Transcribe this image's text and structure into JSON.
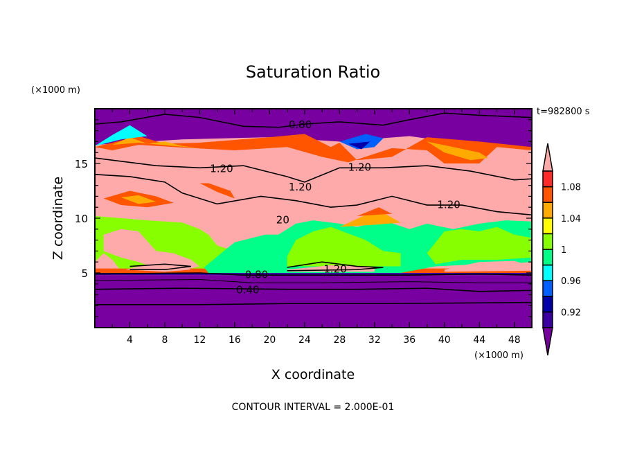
{
  "chart_data": {
    "type": "heatmap",
    "title": "Saturation Ratio",
    "xlabel": "X coordinate",
    "ylabel": "Z coordinate",
    "x_unit": "(×1000 m)",
    "y_unit": "(×1000 m)",
    "time_label": "t=982800 s",
    "footer": "CONTOUR INTERVAL = 2.000E-01",
    "xlim": [
      0,
      50
    ],
    "ylim": [
      0,
      20
    ],
    "x_ticks": [
      "4",
      "8",
      "12",
      "16",
      "20",
      "24",
      "28",
      "32",
      "36",
      "40",
      "44",
      "48"
    ],
    "y_ticks": [
      "5",
      "10",
      "15"
    ],
    "colorbar": {
      "levels": [
        0.9,
        0.92,
        0.94,
        0.96,
        0.98,
        1,
        1.02,
        1.04,
        1.06,
        1.08,
        1.1
      ],
      "labels": [
        "1.08",
        "1.04",
        "1",
        "0.96",
        "0.92"
      ],
      "label_values": [
        1.08,
        1.04,
        1,
        0.96,
        0.92
      ],
      "colors": [
        "#3a00a0",
        "#0000aa",
        "#0060ff",
        "#00ffff",
        "#00ff88",
        "#88ff00",
        "#ffff00",
        "#ffaa00",
        "#ff5500",
        "#ff2a2a"
      ],
      "under_color": "#7800a0",
      "over_color": "#ffaaaa"
    },
    "contour_labels": [
      {
        "text": "0.80",
        "x": 23.5,
        "z": 18.6
      },
      {
        "text": "1.20",
        "x": 14.5,
        "z": 14.6
      },
      {
        "text": "1.20",
        "x": 30.3,
        "z": 14.7
      },
      {
        "text": "1.20",
        "x": 23.5,
        "z": 12.9
      },
      {
        "text": "1.20",
        "x": 40.5,
        "z": 11.3
      },
      {
        "text": "20",
        "x": 21.5,
        "z": 9.9
      },
      {
        "text": "1.20",
        "x": 27.5,
        "z": 5.4
      },
      {
        "text": "0.80",
        "x": 18.5,
        "z": 4.9
      },
      {
        "text": "0.40",
        "x": 17.5,
        "z": 3.5
      }
    ],
    "regions": [
      {
        "c": "#ffaaaa",
        "pts": [
          [
            0,
            4.8
          ],
          [
            50,
            4.8
          ],
          [
            50,
            16.5
          ],
          [
            44,
            16.6
          ],
          [
            36,
            17.5
          ],
          [
            28,
            17
          ],
          [
            20,
            17.4
          ],
          [
            10,
            17.2
          ],
          [
            0,
            16.7
          ]
        ]
      },
      {
        "c": "#ff5500",
        "pts": [
          [
            0,
            16.5
          ],
          [
            5,
            17.5
          ],
          [
            8,
            16.8
          ],
          [
            12,
            16.9
          ],
          [
            20,
            17.4
          ],
          [
            24,
            17.7
          ],
          [
            27,
            16.5
          ],
          [
            28,
            16.9
          ],
          [
            30,
            15.3
          ],
          [
            34,
            15.6
          ],
          [
            38,
            17.4
          ],
          [
            44,
            17
          ],
          [
            50,
            16.5
          ],
          [
            50,
            16.2
          ],
          [
            46,
            16.5
          ],
          [
            44,
            15
          ],
          [
            40,
            15
          ],
          [
            38,
            16.2
          ],
          [
            34,
            16.4
          ],
          [
            29,
            15.1
          ],
          [
            26,
            15.6
          ],
          [
            22,
            16.5
          ],
          [
            16,
            16.2
          ],
          [
            9,
            16.5
          ],
          [
            5,
            16.7
          ],
          [
            2,
            16.2
          ]
        ]
      },
      {
        "c": "#ffaa00",
        "pts": [
          [
            2,
            16.7
          ],
          [
            4,
            17.4
          ],
          [
            6,
            16.8
          ],
          [
            8,
            17
          ],
          [
            10,
            16.6
          ],
          [
            12,
            16.4
          ],
          [
            9,
            16.6
          ],
          [
            5,
            16.9
          ]
        ]
      },
      {
        "c": "#ffaa00",
        "pts": [
          [
            38,
            17
          ],
          [
            41,
            16.5
          ],
          [
            44,
            16
          ],
          [
            45,
            15.5
          ],
          [
            43,
            15.3
          ],
          [
            40,
            16
          ]
        ]
      },
      {
        "c": "#00ffff",
        "pts": [
          [
            0,
            16.6
          ],
          [
            2,
            17.6
          ],
          [
            4,
            18.5
          ],
          [
            6,
            17.5
          ],
          [
            3,
            17.2
          ]
        ]
      },
      {
        "c": "#0060ff",
        "pts": [
          [
            28,
            17
          ],
          [
            30,
            16.3
          ],
          [
            32,
            16.5
          ],
          [
            33,
            17.3
          ],
          [
            31,
            17.7
          ]
        ]
      },
      {
        "c": "#0000aa",
        "pts": [
          [
            29,
            16.8
          ],
          [
            30.5,
            16.3
          ],
          [
            31.5,
            17
          ]
        ]
      },
      {
        "c": "#ff5500",
        "pts": [
          [
            1,
            11.8
          ],
          [
            4,
            12.5
          ],
          [
            7,
            12
          ],
          [
            9,
            11.4
          ],
          [
            6,
            11
          ],
          [
            3,
            11.2
          ]
        ]
      },
      {
        "c": "#ffaa00",
        "pts": [
          [
            3,
            11.9
          ],
          [
            5,
            12.1
          ],
          [
            7,
            11.5
          ],
          [
            5,
            11.3
          ]
        ]
      },
      {
        "c": "#ff5500",
        "pts": [
          [
            12,
            13.2
          ],
          [
            14,
            12.4
          ],
          [
            16,
            11.8
          ],
          [
            15.5,
            12.5
          ],
          [
            13,
            13.2
          ]
        ]
      },
      {
        "c": "#88ff00",
        "pts": [
          [
            0,
            6
          ],
          [
            0,
            10.2
          ],
          [
            3,
            10
          ],
          [
            6,
            9.8
          ],
          [
            10,
            9.6
          ],
          [
            12,
            9
          ],
          [
            13,
            8.5
          ],
          [
            14,
            7.5
          ],
          [
            16,
            7
          ],
          [
            18,
            7
          ],
          [
            18,
            6.5
          ],
          [
            14,
            5.2
          ],
          [
            10,
            5
          ],
          [
            6,
            5.2
          ],
          [
            3,
            5.2
          ],
          [
            2,
            6.2
          ],
          [
            1,
            6.8
          ]
        ]
      },
      {
        "c": "#ffaaaa",
        "pts": [
          [
            1,
            8.5
          ],
          [
            3,
            9
          ],
          [
            5,
            8.8
          ],
          [
            7,
            7
          ],
          [
            9,
            6.8
          ],
          [
            11,
            6.2
          ],
          [
            12,
            5.6
          ],
          [
            10,
            5.2
          ],
          [
            7,
            5.4
          ],
          [
            5,
            6
          ],
          [
            3,
            6.4
          ],
          [
            1,
            7
          ]
        ]
      },
      {
        "c": "#ff5500",
        "pts": [
          [
            0,
            5
          ],
          [
            50,
            5
          ],
          [
            50,
            5.4
          ],
          [
            0,
            5.4
          ]
        ]
      },
      {
        "c": "#00ff88",
        "pts": [
          [
            12.5,
            5.5
          ],
          [
            14,
            6.5
          ],
          [
            16,
            7.8
          ],
          [
            18,
            8.2
          ],
          [
            19.5,
            8.5
          ],
          [
            21,
            8.5
          ],
          [
            23,
            9.5
          ],
          [
            25,
            9.8
          ],
          [
            28,
            9.5
          ],
          [
            30,
            9.2
          ],
          [
            33,
            9.8
          ],
          [
            36,
            9
          ],
          [
            38,
            9.5
          ],
          [
            41,
            9
          ],
          [
            44,
            9.5
          ],
          [
            47,
            9.8
          ],
          [
            50,
            9.7
          ],
          [
            50,
            6
          ],
          [
            47,
            5.8
          ],
          [
            44,
            5.8
          ],
          [
            39,
            5.6
          ],
          [
            35,
            5
          ],
          [
            30,
            4.9
          ],
          [
            24,
            4.9
          ],
          [
            19,
            4.8
          ],
          [
            16,
            5
          ],
          [
            13,
            5
          ]
        ]
      },
      {
        "c": "#88ff00",
        "pts": [
          [
            22,
            6.5
          ],
          [
            23,
            8
          ],
          [
            25,
            8.8
          ],
          [
            27,
            9.2
          ],
          [
            29,
            8.6
          ],
          [
            31,
            8
          ],
          [
            33,
            7
          ],
          [
            35,
            6.8
          ],
          [
            35,
            5.6
          ],
          [
            22,
            5.6
          ]
        ]
      },
      {
        "c": "#88ff00",
        "pts": [
          [
            38,
            6.8
          ],
          [
            40,
            8.8
          ],
          [
            42,
            9
          ],
          [
            44,
            8.8
          ],
          [
            46,
            9.2
          ],
          [
            48,
            8.5
          ],
          [
            50,
            8.2
          ],
          [
            50,
            6.4
          ],
          [
            46,
            6.2
          ],
          [
            42,
            6.2
          ],
          [
            39,
            5.8
          ]
        ]
      },
      {
        "c": "#ffaaaa",
        "pts": [
          [
            22,
            5.3
          ],
          [
            27,
            5.7
          ],
          [
            30,
            5.6
          ],
          [
            32,
            5.5
          ],
          [
            32,
            5.1
          ],
          [
            22,
            5.1
          ]
        ]
      },
      {
        "c": "#ffaaaa",
        "pts": [
          [
            3.5,
            5.3
          ],
          [
            7,
            6
          ],
          [
            10,
            5.8
          ],
          [
            11,
            5.3
          ],
          [
            8,
            5.1
          ]
        ]
      },
      {
        "c": "#ffaaaa",
        "pts": [
          [
            40,
            5.3
          ],
          [
            44,
            6
          ],
          [
            48,
            6.1
          ],
          [
            50,
            5.6
          ],
          [
            50,
            5.2
          ],
          [
            40,
            5.1
          ]
        ]
      },
      {
        "c": "#ffaa00",
        "pts": [
          [
            28,
            9.2
          ],
          [
            31,
            10.3
          ],
          [
            33,
            10.5
          ],
          [
            35,
            9.6
          ],
          [
            32,
            9.4
          ]
        ]
      },
      {
        "c": "#ff5500",
        "pts": [
          [
            30,
            10.2
          ],
          [
            32.5,
            11
          ],
          [
            34,
            10.4
          ]
        ]
      },
      {
        "c": "#3a00a0",
        "pts": [
          [
            0,
            4.8
          ],
          [
            50,
            4.8
          ],
          [
            50,
            5
          ],
          [
            0,
            5
          ]
        ]
      }
    ],
    "contours": [
      {
        "v": 0.8,
        "pts": [
          [
            0,
            18.6
          ],
          [
            3,
            18.8
          ],
          [
            8,
            19.5
          ],
          [
            12,
            19.2
          ],
          [
            17,
            18.4
          ],
          [
            21,
            18.3
          ],
          [
            24,
            18.6
          ],
          [
            28,
            18.8
          ],
          [
            33,
            18.5
          ],
          [
            36,
            19
          ],
          [
            40,
            19.6
          ],
          [
            44,
            19.4
          ],
          [
            50,
            19.2
          ]
        ]
      },
      {
        "v": 1.2,
        "pts": [
          [
            0,
            15.5
          ],
          [
            4,
            15.1
          ],
          [
            7,
            14.8
          ],
          [
            12,
            14.6
          ],
          [
            17,
            14.8
          ],
          [
            22,
            13.8
          ],
          [
            24,
            13.3
          ],
          [
            28,
            14.6
          ],
          [
            33,
            14.6
          ],
          [
            38,
            14.8
          ],
          [
            43,
            14.3
          ],
          [
            48,
            13.5
          ],
          [
            50,
            13.6
          ]
        ]
      },
      {
        "v": 1.2,
        "pts": [
          [
            0,
            14
          ],
          [
            4,
            13.8
          ],
          [
            8,
            13.3
          ],
          [
            10,
            12.3
          ],
          [
            14,
            11.3
          ],
          [
            19,
            12
          ],
          [
            23,
            11.6
          ],
          [
            27,
            11
          ],
          [
            30,
            11.2
          ],
          [
            34,
            12
          ],
          [
            38,
            11.2
          ],
          [
            42,
            11.2
          ],
          [
            46,
            10.6
          ],
          [
            50,
            10.3
          ]
        ]
      },
      {
        "v": 1.2,
        "pts": [
          [
            4,
            5.6
          ],
          [
            8,
            5.8
          ],
          [
            11,
            5.6
          ],
          [
            8,
            5.3
          ],
          [
            4,
            5.3
          ]
        ]
      },
      {
        "v": 1.2,
        "pts": [
          [
            22,
            5.5
          ],
          [
            26,
            6
          ],
          [
            30,
            5.6
          ],
          [
            33,
            5.5
          ],
          [
            30,
            5.3
          ],
          [
            22,
            5.2
          ]
        ]
      },
      {
        "v": 0.8,
        "pts": [
          [
            0,
            4.9
          ],
          [
            12,
            5
          ],
          [
            17,
            4.8
          ],
          [
            24,
            4.8
          ],
          [
            36,
            4.8
          ],
          [
            44,
            4.9
          ],
          [
            50,
            4.8
          ]
        ]
      },
      {
        "v": 0.6,
        "pts": [
          [
            0,
            4.3
          ],
          [
            12,
            4.4
          ],
          [
            18,
            4.1
          ],
          [
            26,
            4.1
          ],
          [
            36,
            4.2
          ],
          [
            44,
            4.1
          ],
          [
            50,
            4.1
          ]
        ]
      },
      {
        "v": 0.4,
        "pts": [
          [
            0,
            3.5
          ],
          [
            10,
            3.6
          ],
          [
            22,
            3.5
          ],
          [
            30,
            3.5
          ],
          [
            38,
            3.6
          ],
          [
            44,
            3.3
          ],
          [
            50,
            3.4
          ]
        ]
      },
      {
        "v": 0.2,
        "pts": [
          [
            0,
            2.1
          ],
          [
            12,
            2.1
          ],
          [
            22,
            2.2
          ],
          [
            34,
            2.2
          ],
          [
            50,
            2.3
          ]
        ]
      }
    ]
  }
}
